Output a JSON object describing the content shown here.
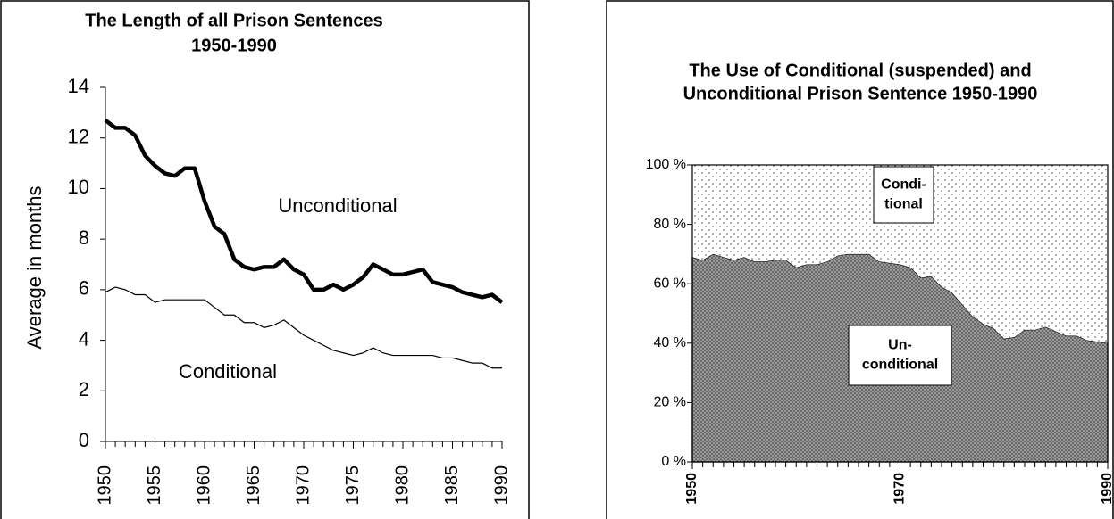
{
  "chart_data": [
    {
      "type": "line",
      "title": [
        "The Length of all Prison Sentences",
        "1950-1990"
      ],
      "y_label": "Average in months",
      "x": [
        1950,
        1951,
        1952,
        1953,
        1954,
        1955,
        1956,
        1957,
        1958,
        1959,
        1960,
        1961,
        1962,
        1963,
        1964,
        1965,
        1966,
        1967,
        1968,
        1969,
        1970,
        1971,
        1972,
        1973,
        1974,
        1975,
        1976,
        1977,
        1978,
        1979,
        1980,
        1981,
        1982,
        1983,
        1984,
        1985,
        1986,
        1987,
        1988,
        1989,
        1990
      ],
      "series": [
        {
          "name": "Unconditional",
          "color": "#000000",
          "width": 4.5,
          "values": [
            12.7,
            12.4,
            12.4,
            12.1,
            11.3,
            10.9,
            10.6,
            10.5,
            10.8,
            10.8,
            9.5,
            8.5,
            8.2,
            7.2,
            6.9,
            6.8,
            6.9,
            6.9,
            7.2,
            6.8,
            6.6,
            6.0,
            6.0,
            6.2,
            6.0,
            6.2,
            6.5,
            7.0,
            6.8,
            6.6,
            6.6,
            6.7,
            6.8,
            6.3,
            6.2,
            6.1,
            5.9,
            5.8,
            5.7,
            5.8,
            5.5
          ]
        },
        {
          "name": "Conditional",
          "color": "#000000",
          "width": 1.2,
          "values": [
            5.9,
            6.1,
            6.0,
            5.8,
            5.8,
            5.5,
            5.6,
            5.6,
            5.6,
            5.6,
            5.6,
            5.3,
            5.0,
            5.0,
            4.7,
            4.7,
            4.5,
            4.6,
            4.8,
            4.5,
            4.2,
            4.0,
            3.8,
            3.6,
            3.5,
            3.4,
            3.5,
            3.7,
            3.5,
            3.4,
            3.4,
            3.4,
            3.4,
            3.4,
            3.3,
            3.3,
            3.2,
            3.1,
            3.1,
            2.9,
            2.9
          ]
        }
      ],
      "xlim": [
        1950,
        1990
      ],
      "xticks": [
        1950,
        1955,
        1960,
        1965,
        1970,
        1975,
        1980,
        1985,
        1990
      ],
      "ylim": [
        0,
        14
      ],
      "yticks": [
        0,
        2,
        4,
        6,
        8,
        10,
        12,
        14
      ]
    },
    {
      "type": "area",
      "title": [
        "The Use of Conditional (suspended) and",
        "Unconditional Prison Sentence 1950-1990"
      ],
      "x": [
        1950,
        1951,
        1952,
        1953,
        1954,
        1955,
        1956,
        1957,
        1958,
        1959,
        1960,
        1961,
        1962,
        1963,
        1964,
        1965,
        1966,
        1967,
        1968,
        1969,
        1970,
        1971,
        1972,
        1973,
        1974,
        1975,
        1976,
        1977,
        1978,
        1979,
        1980,
        1981,
        1982,
        1983,
        1984,
        1985,
        1986,
        1987,
        1988,
        1989,
        1990
      ],
      "series": [
        {
          "name": [
            "Un-",
            "conditional"
          ],
          "color": "#8a8a8a",
          "pattern": "dense",
          "values": [
            69,
            68,
            70,
            69,
            68,
            69,
            67.5,
            67.5,
            68,
            68,
            65.5,
            66.5,
            66.5,
            67.5,
            69.5,
            70,
            70,
            70,
            67.5,
            67,
            66.5,
            65.5,
            62,
            62.5,
            59,
            57,
            53,
            49,
            46.5,
            45,
            41.5,
            42,
            44.5,
            44.5,
            45.5,
            44,
            42.5,
            42.5,
            41,
            40.5,
            40
          ]
        },
        {
          "name": [
            "Condi-",
            "tional"
          ],
          "color": "#ffffff",
          "pattern": "dots",
          "values": [
            31,
            32,
            30,
            31,
            32,
            31,
            32.5,
            32.5,
            32,
            32,
            34.5,
            33.5,
            33.5,
            32.5,
            30.5,
            30,
            30,
            30,
            32.5,
            33,
            33.5,
            34.5,
            38,
            37.5,
            41,
            43,
            47,
            51,
            53.5,
            55,
            58.5,
            58,
            55.5,
            55.5,
            54.5,
            56,
            57.5,
            57.5,
            59,
            59.5,
            60
          ]
        }
      ],
      "xlim": [
        1950,
        1990
      ],
      "xticks": [
        1950,
        1970,
        1990
      ],
      "ylim": [
        0,
        100
      ],
      "yticks": [
        {
          "value": 0,
          "label": "0 %"
        },
        {
          "value": 20,
          "label": "20 %"
        },
        {
          "value": 40,
          "label": "40 %"
        },
        {
          "value": 60,
          "label": "60 %"
        },
        {
          "value": 80,
          "label": "80 %"
        },
        {
          "value": 100,
          "label": "100 %"
        }
      ]
    }
  ]
}
